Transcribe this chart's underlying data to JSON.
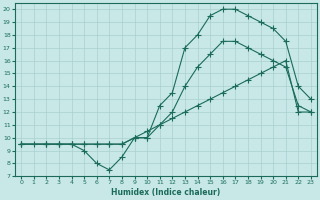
{
  "bg_color": "#c8e8e8",
  "line_color": "#1a6b5a",
  "grid_color": "#aacfcf",
  "xlabel": "Humidex (Indice chaleur)",
  "xlim": [
    -0.5,
    23.5
  ],
  "ylim": [
    7,
    20.5
  ],
  "xticks": [
    0,
    1,
    2,
    3,
    4,
    5,
    6,
    7,
    8,
    9,
    10,
    11,
    12,
    13,
    14,
    15,
    16,
    17,
    18,
    19,
    20,
    21,
    22,
    23
  ],
  "yticks": [
    7,
    8,
    9,
    10,
    11,
    12,
    13,
    14,
    15,
    16,
    17,
    18,
    19,
    20
  ],
  "lines": [
    {
      "x": [
        0,
        1,
        2,
        3,
        4,
        5,
        6,
        7,
        8,
        9,
        10,
        11,
        12,
        13,
        14,
        15,
        16,
        17,
        18,
        19,
        20,
        21,
        22,
        23
      ],
      "y": [
        9.5,
        9.5,
        9.5,
        9.5,
        9.5,
        9.5,
        9.5,
        9.5,
        9.5,
        10.0,
        10.5,
        11.0,
        11.5,
        12.0,
        12.5,
        13.0,
        13.5,
        14.0,
        14.5,
        15.0,
        15.5,
        16.0,
        12.0,
        12.0
      ]
    },
    {
      "x": [
        0,
        2,
        3,
        4,
        5,
        6,
        7,
        8,
        9,
        10,
        11,
        12,
        13,
        14,
        15,
        16,
        17,
        18,
        19,
        20,
        21,
        22,
        23
      ],
      "y": [
        9.5,
        9.5,
        9.5,
        9.5,
        9.5,
        9.5,
        9.5,
        9.5,
        10.0,
        10.0,
        11.0,
        12.0,
        14.0,
        15.5,
        16.5,
        17.5,
        17.5,
        17.0,
        16.5,
        16.0,
        15.5,
        12.5,
        12.0
      ]
    },
    {
      "x": [
        0,
        2,
        3,
        4,
        5,
        6,
        7,
        8,
        9,
        10,
        11,
        12,
        13,
        14,
        15,
        16,
        17,
        18,
        19,
        20,
        21,
        22,
        23
      ],
      "y": [
        9.5,
        9.5,
        9.5,
        9.5,
        9.0,
        8.0,
        7.5,
        8.5,
        10.0,
        10.0,
        12.5,
        13.5,
        17.0,
        18.0,
        19.5,
        20.0,
        20.0,
        19.5,
        19.0,
        18.5,
        17.5,
        14.0,
        13.0
      ]
    }
  ]
}
